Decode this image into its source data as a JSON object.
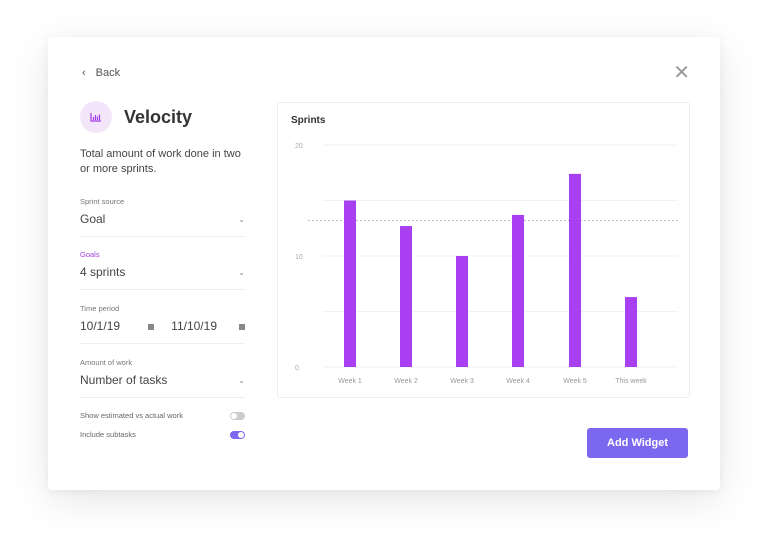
{
  "header": {
    "back_label": "Back",
    "close_icon": "close-icon"
  },
  "widget": {
    "title": "Velocity",
    "icon": "bar-chart-icon",
    "description": "Total amount of work done in two or more sprints."
  },
  "form": {
    "sprint_source": {
      "label": "Sprint source",
      "value": "Goal"
    },
    "goals": {
      "label": "Goals",
      "value": "4 sprints"
    },
    "time_period": {
      "label": "Time period",
      "start": "10/1/19",
      "end": "11/10/19"
    },
    "amount_of_work": {
      "label": "Amount of work",
      "value": "Number of tasks"
    },
    "show_estimated": {
      "label": "Show estimated vs actual work",
      "on": false
    },
    "include_subtasks": {
      "label": "Include subtasks",
      "on": true
    }
  },
  "add_widget_label": "Add Widget",
  "colors": {
    "bar": "#a83ff0",
    "accent": "#7b68ee"
  },
  "chart_data": {
    "type": "bar",
    "title": "Sprints",
    "categories": [
      "Week 1",
      "Week 2",
      "Week 3",
      "Week 4",
      "Week 5",
      "This week"
    ],
    "values": [
      15,
      12.7,
      10,
      13.7,
      17.4,
      6.3
    ],
    "average_line": 13.2,
    "ylim": [
      0,
      20
    ],
    "yticks": [
      "0",
      "10",
      "20"
    ],
    "grid": true
  }
}
